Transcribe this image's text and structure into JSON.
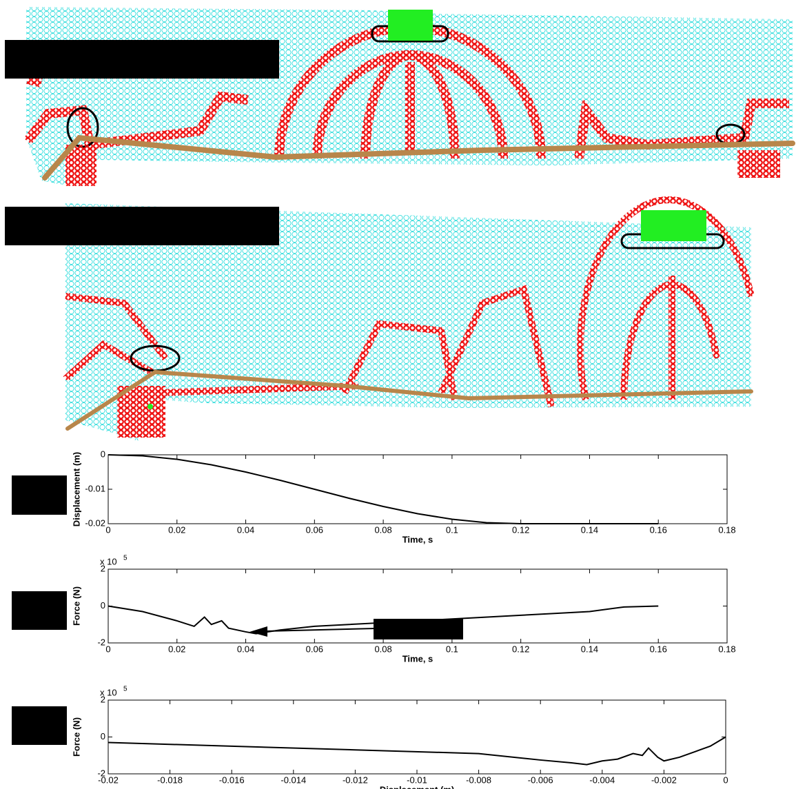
{
  "chart_data": [
    {
      "type": "line",
      "x_label": "Time, s",
      "y_label": "Displacement (m)",
      "x": [
        0,
        0.01,
        0.02,
        0.03,
        0.04,
        0.05,
        0.06,
        0.07,
        0.08,
        0.09,
        0.1,
        0.11,
        0.12,
        0.13,
        0.14,
        0.15,
        0.16
      ],
      "series": [
        {
          "color": "#000000",
          "values": [
            0,
            -0.0003,
            -0.0013,
            -0.0029,
            -0.005,
            -0.0074,
            -0.01,
            -0.0126,
            -0.015,
            -0.0171,
            -0.0187,
            -0.0197,
            -0.02,
            -0.02,
            -0.02,
            -0.02,
            -0.02
          ]
        }
      ],
      "xlim": [
        0,
        0.18
      ],
      "xticks": [
        0,
        0.02,
        0.04,
        0.06,
        0.08,
        0.1,
        0.12,
        0.14,
        0.16,
        0.18
      ],
      "ylim": [
        -0.02,
        0
      ],
      "yticks": [
        -0.02,
        -0.01,
        0
      ]
    },
    {
      "type": "line",
      "x_label": "Time, s",
      "y_label": "Force (N)",
      "y_multiplier": "x 10",
      "y_multiplier_exponent": "5",
      "x": [
        0,
        0.01,
        0.02,
        0.025,
        0.028,
        0.03,
        0.033,
        0.035,
        0.04,
        0.043,
        0.05,
        0.06,
        0.08,
        0.1,
        0.12,
        0.14,
        0.15,
        0.16
      ],
      "series": [
        {
          "color": "#000000",
          "values": [
            0,
            -30000,
            -80000,
            -110000,
            -60000,
            -100000,
            -80000,
            -120000,
            -140000,
            -150000,
            -130000,
            -110000,
            -90000,
            -70000,
            -50000,
            -30000,
            -5000,
            0
          ]
        }
      ],
      "xlim": [
        0,
        0.18
      ],
      "xticks": [
        0,
        0.02,
        0.04,
        0.06,
        0.08,
        0.1,
        0.12,
        0.14,
        0.16,
        0.18
      ],
      "ylim": [
        -200000,
        200000
      ],
      "yticks": [
        {
          "value": -200000,
          "label": "-2"
        },
        {
          "value": 0,
          "label": "0"
        },
        {
          "value": 200000,
          "label": "2"
        }
      ]
    },
    {
      "type": "line",
      "x_label": "Displacement (m)",
      "y_label": "Force (N)",
      "y_multiplier": "x 10",
      "y_multiplier_exponent": "5",
      "x": [
        -0.02,
        -0.016,
        -0.012,
        -0.008,
        -0.006,
        -0.005,
        -0.0045,
        -0.004,
        -0.0035,
        -0.003,
        -0.0027,
        -0.0025,
        -0.0022,
        -0.002,
        -0.0015,
        -0.001,
        -0.0005,
        0
      ],
      "series": [
        {
          "color": "#000000",
          "values": [
            -30000,
            -50000,
            -70000,
            -90000,
            -125000,
            -140000,
            -150000,
            -130000,
            -120000,
            -90000,
            -100000,
            -60000,
            -110000,
            -130000,
            -110000,
            -80000,
            -50000,
            0
          ]
        }
      ],
      "xlim": [
        -0.02,
        0
      ],
      "xticks": [
        -0.02,
        -0.018,
        -0.016,
        -0.014,
        -0.012,
        -0.01,
        -0.008,
        -0.006,
        -0.004,
        -0.002,
        0
      ],
      "ylim": [
        -200000,
        200000
      ],
      "yticks": [
        {
          "value": -200000,
          "label": "-2"
        },
        {
          "value": 0,
          "label": "0"
        },
        {
          "value": 200000,
          "label": "2"
        }
      ]
    }
  ]
}
